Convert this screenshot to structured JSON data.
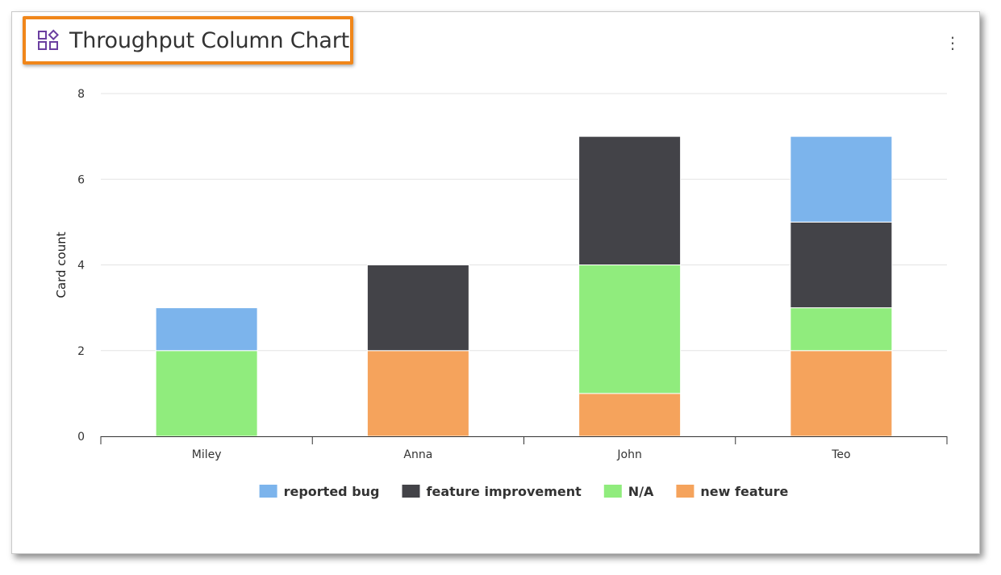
{
  "widget": {
    "title": "Throughput Column Chart",
    "title_icon": "widget-grid-icon",
    "menu_icon": "vertical-dots-icon",
    "menu_glyph": "⋮",
    "accent_color": "#6b3fa0",
    "highlight_color": "#f0861a"
  },
  "chart_data": {
    "type": "bar",
    "stacked": true,
    "categories": [
      "Miley",
      "Anna",
      "John",
      "Teo"
    ],
    "series": [
      {
        "name": "new feature",
        "color": "#f5a35c",
        "values": [
          0,
          2,
          1,
          2
        ]
      },
      {
        "name": "N/A",
        "color": "#90ec7d",
        "values": [
          2,
          0,
          3,
          1
        ]
      },
      {
        "name": "feature improvement",
        "color": "#434348",
        "values": [
          0,
          2,
          3,
          2
        ]
      },
      {
        "name": "reported bug",
        "color": "#7cb4ec",
        "values": [
          1,
          0,
          0,
          2
        ]
      }
    ],
    "legend_order": [
      "reported bug",
      "feature improvement",
      "N/A",
      "new feature"
    ],
    "ylabel": "Card count",
    "xlabel": "",
    "ylim": [
      0,
      8
    ],
    "yticks": [
      0,
      2,
      4,
      6,
      8
    ],
    "grid": true,
    "legend_position": "bottom-center"
  }
}
